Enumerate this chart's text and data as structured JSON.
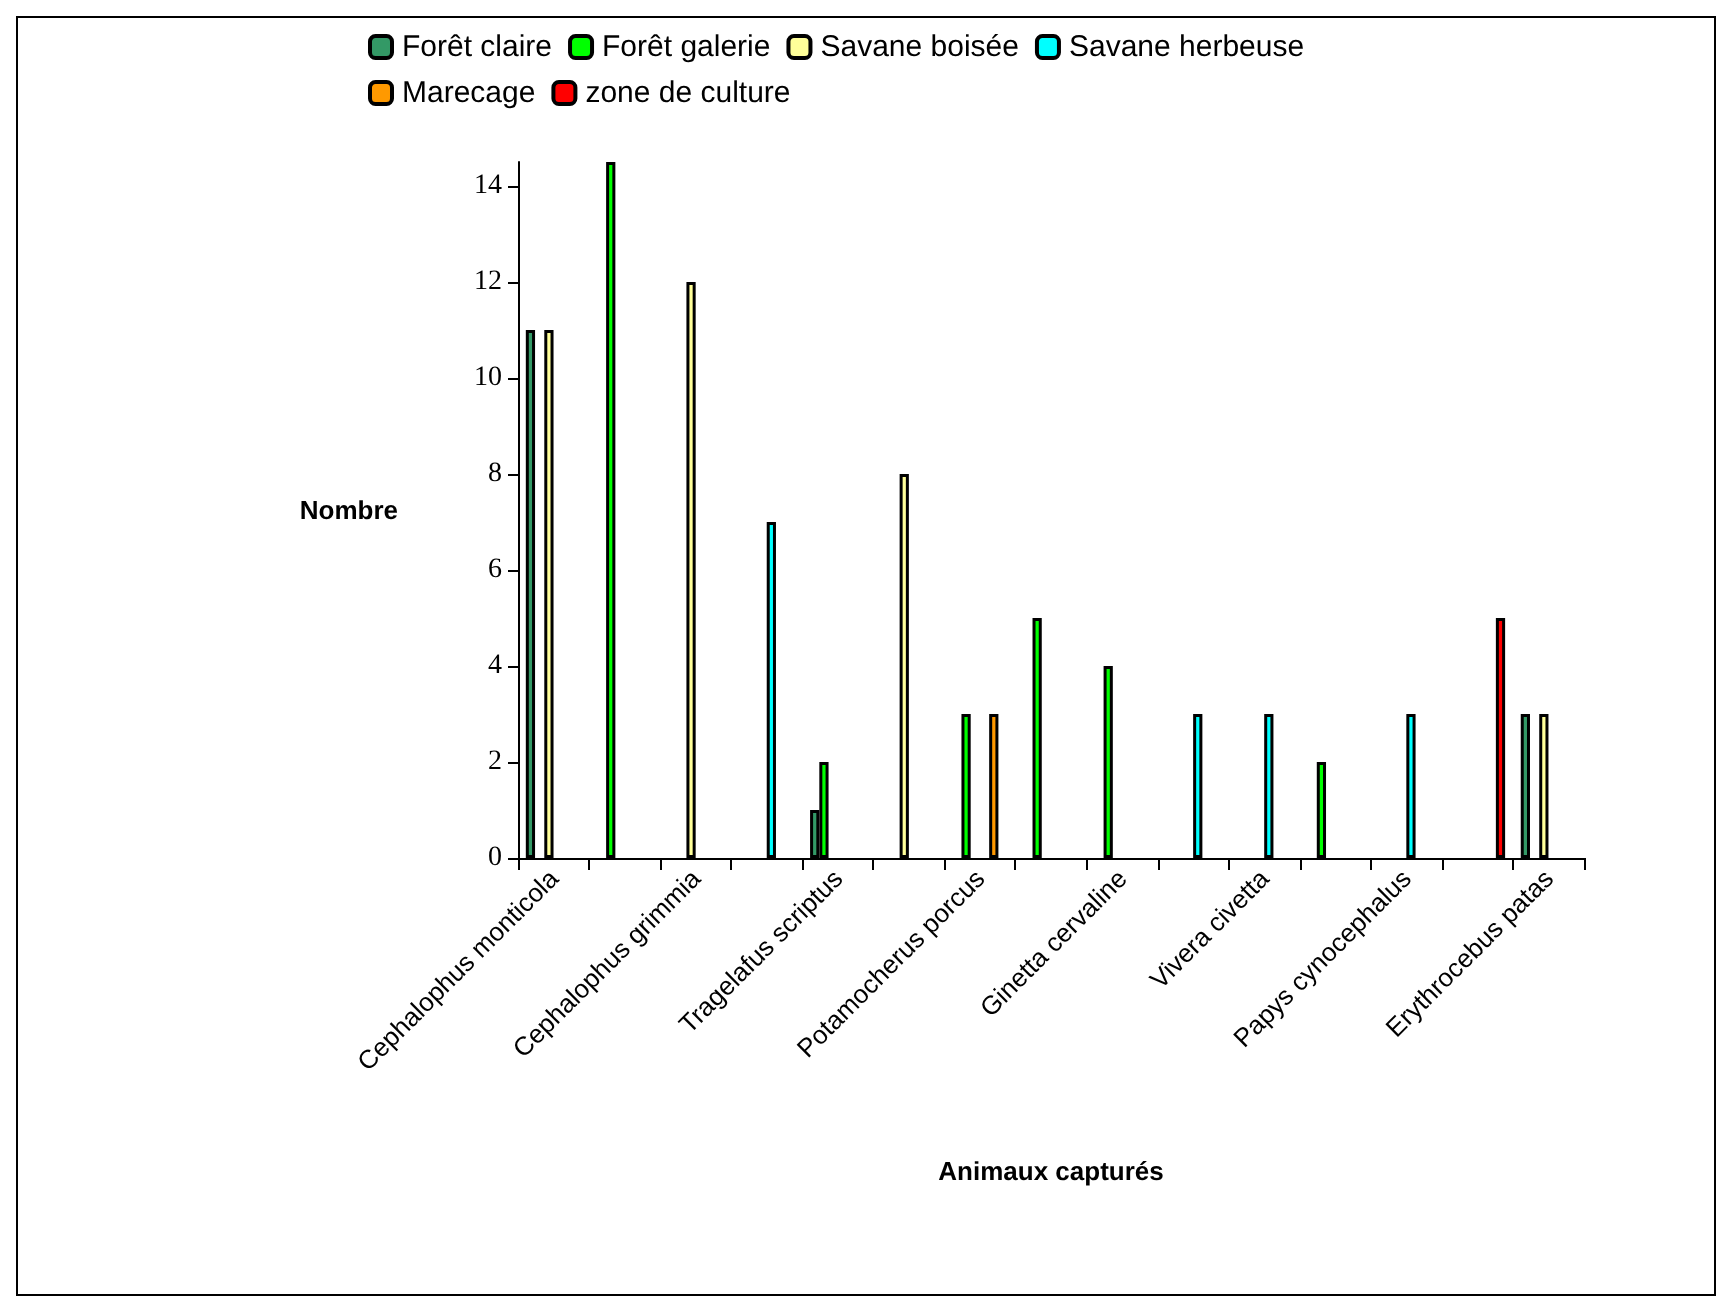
{
  "chart_data": {
    "type": "bar",
    "xlabel": "Animaux capturés",
    "ylabel": "Nombre",
    "categories": [
      "Cephalophus monticola",
      null,
      "Cephalophus grimmia",
      null,
      "Tragelafus scriptus",
      null,
      "Potamocherus porcus",
      null,
      "Ginetta cervaline",
      null,
      "Vivera civetta",
      null,
      "Papys cynocephalus",
      null,
      "Erythrocebus patas"
    ],
    "series": [
      {
        "name": "Forêt claire",
        "color": "#339966",
        "values": [
          11,
          null,
          null,
          null,
          1,
          null,
          null,
          null,
          null,
          null,
          null,
          null,
          null,
          null,
          3
        ]
      },
      {
        "name": "Forêt galerie",
        "color": "#00ff00",
        "values": [
          null,
          14.5,
          null,
          null,
          2,
          null,
          3,
          5,
          4,
          null,
          null,
          2,
          null,
          null,
          null
        ]
      },
      {
        "name": "Savane boisée",
        "color": "#ffff99",
        "values": [
          11,
          null,
          12,
          null,
          null,
          8,
          null,
          null,
          null,
          null,
          null,
          null,
          null,
          null,
          3
        ]
      },
      {
        "name": "Savane herbeuse",
        "color": "#00ffff",
        "values": [
          null,
          null,
          null,
          7,
          null,
          null,
          null,
          null,
          null,
          3,
          3,
          null,
          3,
          null,
          null
        ]
      },
      {
        "name": "Marecage",
        "color": "#ff9900",
        "values": [
          null,
          null,
          null,
          null,
          null,
          null,
          3,
          null,
          null,
          null,
          null,
          null,
          null,
          null,
          null
        ]
      },
      {
        "name": "zone de culture",
        "color": "#ff0000",
        "values": [
          null,
          null,
          null,
          null,
          null,
          null,
          null,
          null,
          null,
          null,
          null,
          null,
          null,
          5,
          null
        ]
      }
    ],
    "ylim": [
      0,
      14.5
    ],
    "yticks": [
      0,
      2,
      4,
      6,
      8,
      10,
      12,
      14
    ],
    "grid": false,
    "legend": "top"
  }
}
